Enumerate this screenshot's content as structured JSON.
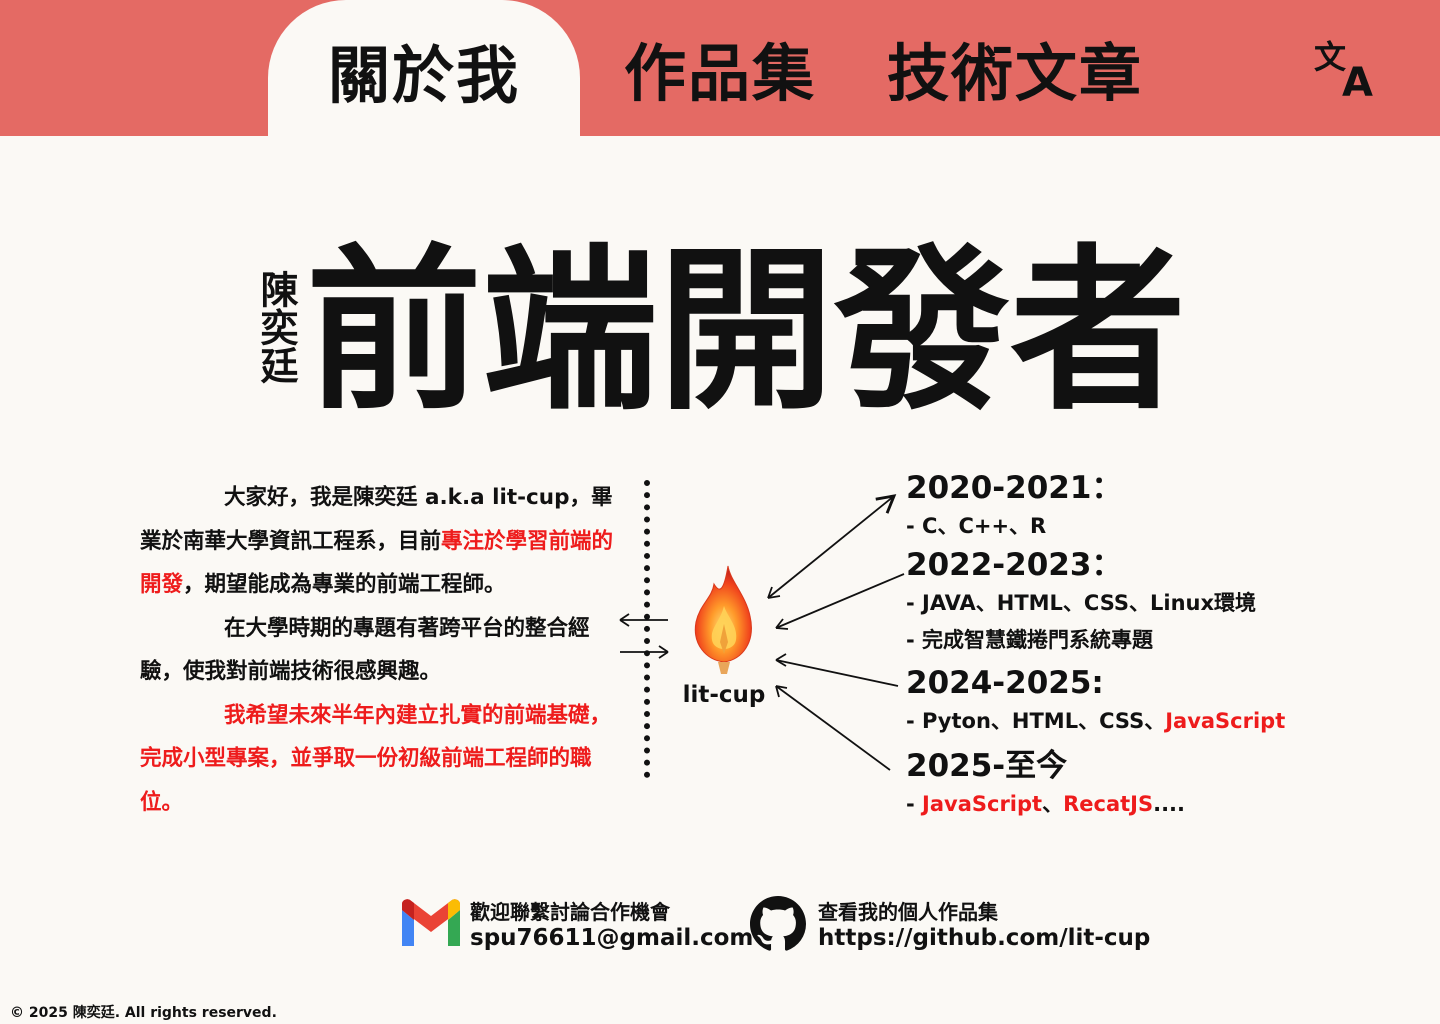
{
  "nav": {
    "tabs": [
      {
        "label": "關於我",
        "active": true
      },
      {
        "label": "作品集",
        "active": false
      },
      {
        "label": "技術文章",
        "active": false
      }
    ],
    "translate_icon": "translate-icon",
    "header_color": "#e46a64"
  },
  "hero": {
    "name": "陳奕廷",
    "title": "前端開發者"
  },
  "intro": {
    "p1_a": "大家好，我是陳奕廷 a.k.a lit-cup，畢業於南華大學資訊工程系，目前",
    "p1_red": "專注於學習前端的開發",
    "p1_b": "，期望能成為專業的前端工程師。",
    "p2": "在大學時期的專題有著跨平台的整合經驗，使我對前端技術很感興趣。",
    "p3_red": "我希望未來半年內建立扎實的前端基礎，完成小型專案，並爭取一份初級前端工程師的職位。"
  },
  "avatar": {
    "icon": "flame-icon",
    "label": "lit-cup"
  },
  "timeline": [
    {
      "year": "2020-2021：",
      "items": [
        {
          "parts": [
            {
              "text": "- C、C++、R",
              "red": false
            }
          ]
        }
      ]
    },
    {
      "year": "2022-2023：",
      "items": [
        {
          "parts": [
            {
              "text": "-  JAVA、HTML、CSS、Linux環境",
              "red": false
            }
          ]
        },
        {
          "parts": [
            {
              "text": "- 完成智慧鐵捲門系統專題",
              "red": false
            }
          ]
        }
      ]
    },
    {
      "year": "2024-2025:",
      "items": [
        {
          "parts": [
            {
              "text": "- Pyton、HTML、CSS、",
              "red": false
            },
            {
              "text": "JavaScript",
              "red": true
            }
          ]
        }
      ]
    },
    {
      "year": "2025-至今",
      "items": [
        {
          "parts": [
            {
              "text": "- ",
              "red": false
            },
            {
              "text": "JavaScript",
              "red": true
            },
            {
              "text": "、",
              "red": false
            },
            {
              "text": "RecatJS",
              "red": true
            },
            {
              "text": "....",
              "red": false
            }
          ]
        }
      ]
    }
  ],
  "contact": {
    "mail": {
      "icon": "gmail-icon",
      "label": "歡迎聯繫討論合作機會",
      "value": "spu76611@gmail.com"
    },
    "github": {
      "icon": "github-icon",
      "label": "查看我的個人作品集",
      "value": "https://github.com/lit-cup"
    }
  },
  "footer": {
    "copyright": "© 2025 陳奕廷. All rights reserved."
  },
  "colors": {
    "accent_red": "#ee1c1c",
    "background": "#fbf9f5"
  }
}
